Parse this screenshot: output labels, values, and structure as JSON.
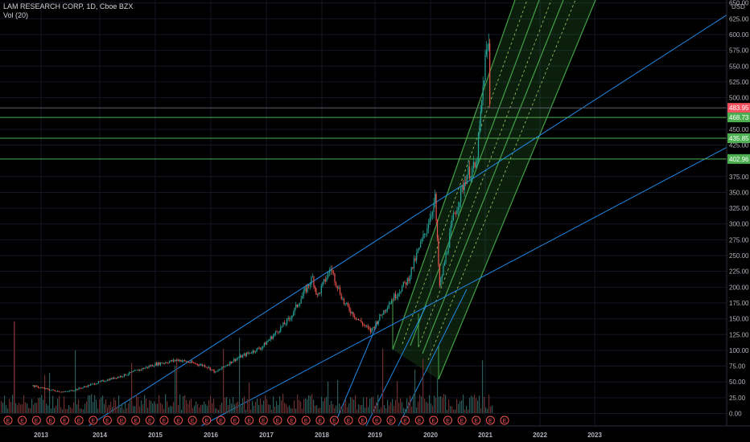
{
  "header": {
    "symbol_line": "LAM RESEARCH CORP, 1D, Cboe BZX",
    "volume_line": "Vol (20)"
  },
  "chart_data": {
    "type": "candlestick",
    "title": "LAM RESEARCH CORP, 1D, Cboe BZX",
    "currency_label": "USD",
    "y_ticks": [
      "650.00",
      "625.00",
      "600.00",
      "575.00",
      "550.00",
      "525.00",
      "500.00",
      "450.00",
      "425.00",
      "375.00",
      "350.00",
      "325.00",
      "300.00",
      "275.00",
      "250.00",
      "225.00",
      "200.00",
      "175.00",
      "150.00",
      "125.00",
      "100.00",
      "75.00",
      "50.00",
      "25.00",
      "0.00"
    ],
    "x_ticks": [
      "2013",
      "2014",
      "2015",
      "2016",
      "2017",
      "2018",
      "2019",
      "2020",
      "2021",
      "2022",
      "2023"
    ],
    "price_labels": [
      {
        "text": "483.95",
        "color": "#f7525f"
      },
      {
        "text": "468.73",
        "color": "#4caf50"
      },
      {
        "text": "435.85",
        "color": "#4caf50"
      },
      {
        "text": "402.96",
        "color": "#4caf50"
      }
    ],
    "price_path": [
      [
        "2012-11",
        44
      ],
      [
        "2013-03",
        37
      ],
      [
        "2013-06",
        34
      ],
      [
        "2013-09",
        40
      ],
      [
        "2014-01",
        50
      ],
      [
        "2014-06",
        60
      ],
      [
        "2015-01",
        78
      ],
      [
        "2015-06",
        85
      ],
      [
        "2015-12",
        75
      ],
      [
        "2016-02",
        65
      ],
      [
        "2016-06",
        85
      ],
      [
        "2016-12",
        105
      ],
      [
        "2017-06",
        150
      ],
      [
        "2017-11",
        215
      ],
      [
        "2017-12",
        185
      ],
      [
        "2018-03",
        230
      ],
      [
        "2018-06",
        175
      ],
      [
        "2018-09",
        150
      ],
      [
        "2018-12",
        130
      ],
      [
        "2019-04",
        175
      ],
      [
        "2019-08",
        210
      ],
      [
        "2019-12",
        290
      ],
      [
        "2020-02",
        340
      ],
      [
        "2020-03",
        200
      ],
      [
        "2020-06",
        310
      ],
      [
        "2020-09",
        380
      ],
      [
        "2020-11",
        390
      ],
      [
        "2020-12",
        470
      ],
      [
        "2021-01",
        560
      ],
      [
        "2021-02",
        590
      ],
      [
        "2021-02",
        500
      ]
    ],
    "volume_peak_year": "2012"
  },
  "colors": {
    "background": "#000000",
    "grid": "#131722",
    "up": "#26a69a",
    "down": "#ef5350",
    "trendline_blue": "#1e88e5",
    "channel_green": "#43a047",
    "horizontal_green": "#4caf50",
    "volume_up": "#2b5c5a",
    "volume_down": "#6b2f2f"
  },
  "event_markers": {
    "letter": "E",
    "count": 36
  }
}
